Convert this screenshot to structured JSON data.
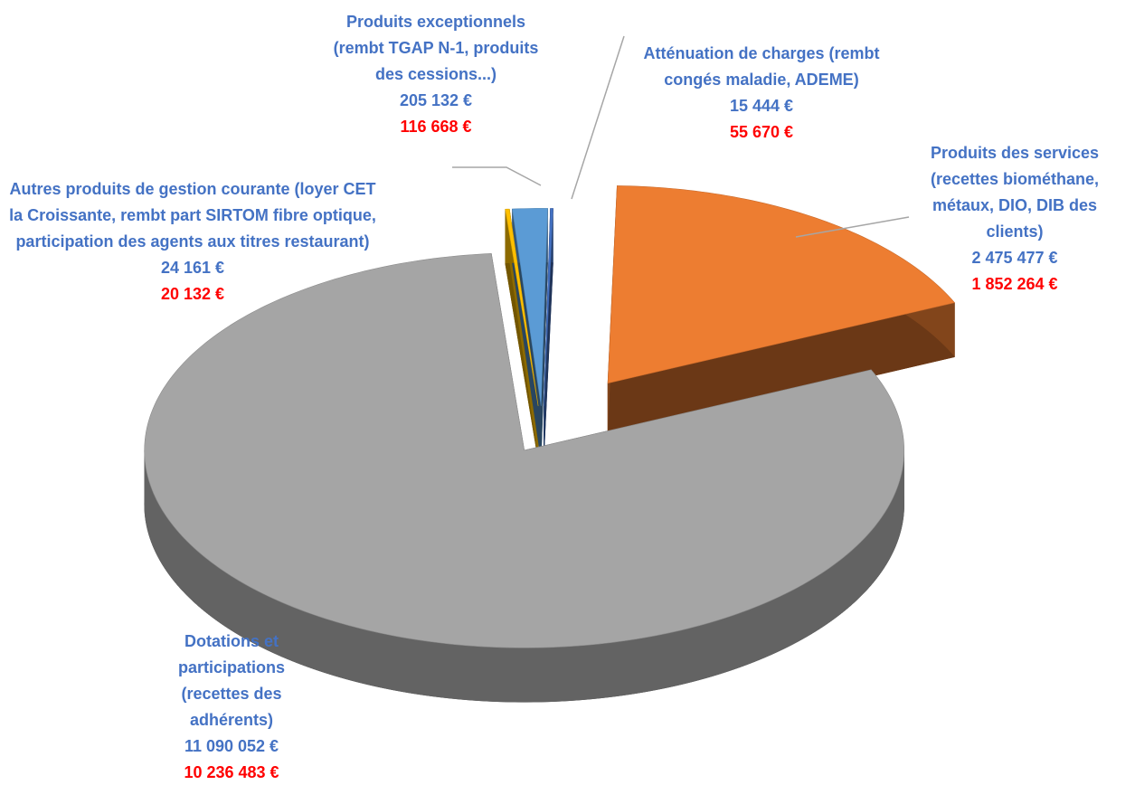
{
  "chart_data": {
    "type": "pie",
    "categories": [
      "Atténuation de charges (rembt congés maladie, ADEME)",
      "Produits des services (recettes biométhane, métaux, DIO, DIB des clients)",
      "Dotations et participations (recettes des adhérents)",
      "Autres produits de gestion courante (loyer CET  la Croissante, rembt part SIRTOM fibre optique, participation des agents aux titres restaurant)",
      "Produits exceptionnels (rembt TGAP N-1, produits des cessions...)"
    ],
    "colors": [
      "#4472c4",
      "#ed7d31",
      "#a5a5a5",
      "#ffc000",
      "#5b9bd5"
    ],
    "series": [
      {
        "color": "#4472c4",
        "values": [
          15444,
          2475477,
          11090052,
          24161,
          205132
        ],
        "value_labels": [
          "15 444 €",
          "2 475 477 €",
          "11 090 052 €",
          "24 161 €",
          "205 132 €"
        ]
      },
      {
        "color": "#ff0000",
        "values": [
          55670,
          1852264,
          10236483,
          20132,
          116668
        ],
        "value_labels": [
          "55 670 €",
          "1 852 264 €",
          "10 236 483 €",
          "20 132 €",
          "116 668 €"
        ]
      }
    ]
  }
}
